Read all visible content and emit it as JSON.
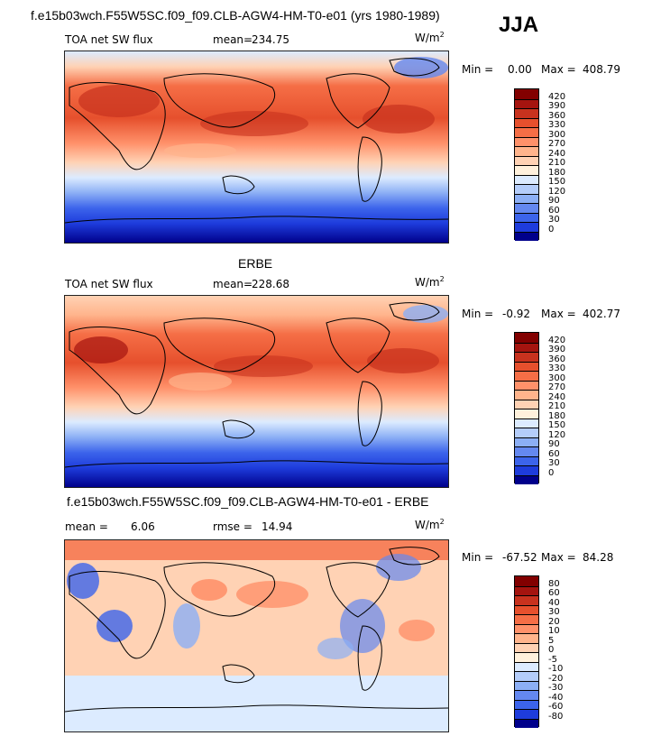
{
  "header": {
    "title": "f.e15b03wch.F55W5SC.f09_f09.CLB-AGW4-HM-T0-e01 (yrs 1980-1989)",
    "season": "JJA"
  },
  "colors": {
    "flux_scale": [
      "#00008b",
      "#1e3cdc",
      "#3c64eb",
      "#6488f0",
      "#8caff5",
      "#b4cdfa",
      "#dcebff",
      "#fff1dc",
      "#ffd2b4",
      "#ffb48c",
      "#ff916a",
      "#f56e46",
      "#e6502d",
      "#c8321e",
      "#a5140f",
      "#820000"
    ],
    "diff_scale": [
      "#00008b",
      "#1e3cdc",
      "#3c64eb",
      "#6488f0",
      "#8caff5",
      "#b4cdfa",
      "#dcebff",
      "#fff1dc",
      "#ffd2b4",
      "#ffb48c",
      "#ff916a",
      "#f56e46",
      "#e6502d",
      "#c8321e",
      "#a5140f",
      "#820000"
    ],
    "coast": "#000000"
  },
  "chart_data": [
    {
      "type": "heatmap",
      "title": "",
      "field_label": "TOA net SW flux",
      "mean_label": "mean=",
      "mean": "234.75",
      "units": "W/m",
      "units_exp": "2",
      "min_label": "Min =",
      "min": "0.00",
      "max_label": "Max =",
      "max": "408.79",
      "levels": [
        "420",
        "390",
        "360",
        "330",
        "300",
        "270",
        "240",
        "210",
        "180",
        "150",
        "120",
        "90",
        "60",
        "30",
        "0"
      ]
    },
    {
      "type": "heatmap",
      "title": "ERBE",
      "field_label": "TOA net SW flux",
      "mean_label": "mean=",
      "mean": "228.68",
      "units": "W/m",
      "units_exp": "2",
      "min_label": "Min =",
      "min": "-0.92",
      "max_label": "Max =",
      "max": "402.77",
      "levels": [
        "420",
        "390",
        "360",
        "330",
        "300",
        "270",
        "240",
        "210",
        "180",
        "150",
        "120",
        "90",
        "60",
        "30",
        "0"
      ]
    },
    {
      "type": "heatmap",
      "title": "f.e15b03wch.F55W5SC.f09_f09.CLB-AGW4-HM-T0-e01 - ERBE",
      "mean_label": "mean =",
      "mean": "6.06",
      "rmse_label": "rmse =",
      "rmse": "14.94",
      "units": "W/m",
      "units_exp": "2",
      "min_label": "Min =",
      "min": "-67.52",
      "max_label": "Max =",
      "max": "84.28",
      "levels": [
        "80",
        "60",
        "40",
        "30",
        "20",
        "10",
        "5",
        "0",
        "-5",
        "-10",
        "-20",
        "-30",
        "-40",
        "-60",
        "-80"
      ]
    }
  ]
}
